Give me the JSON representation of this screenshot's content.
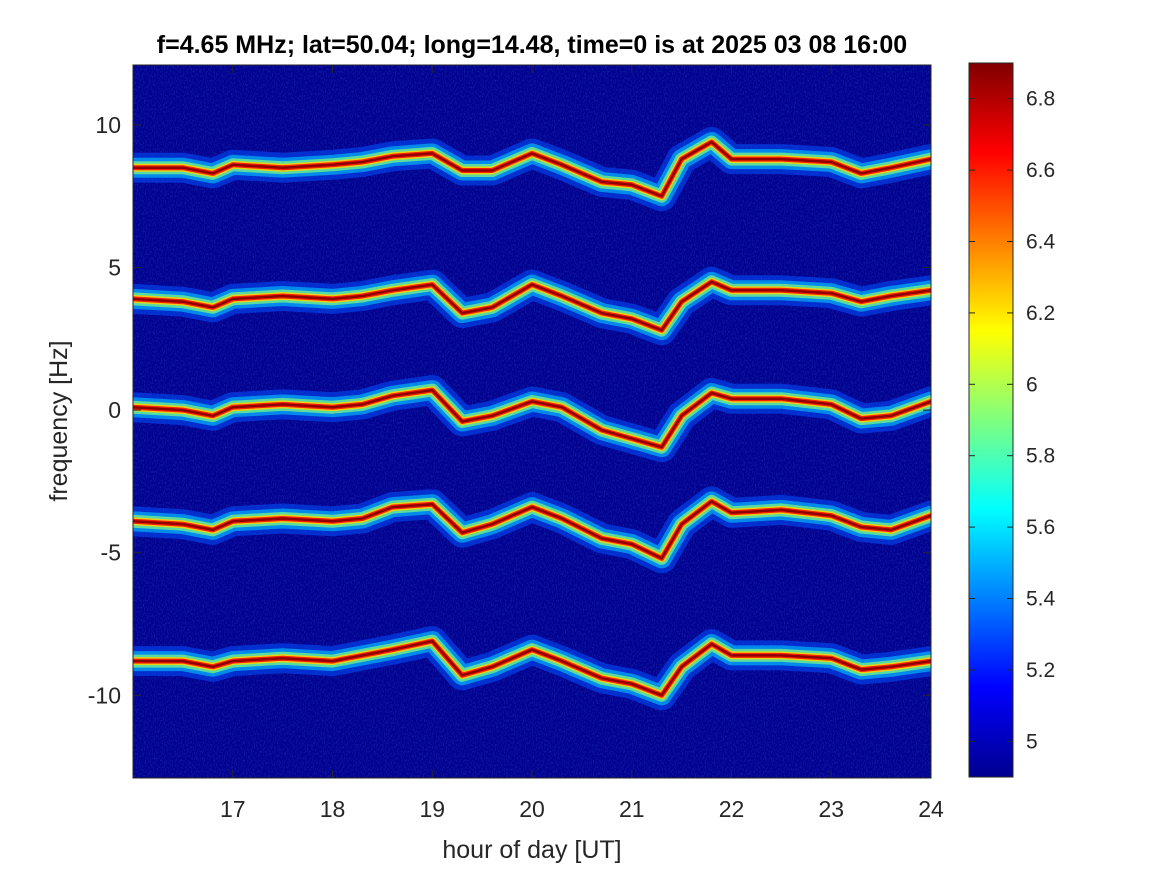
{
  "chart_data": {
    "type": "heatmap",
    "title": "f=4.65 MHz;  lat=50.04; long=14.48, time=0 is at 2025 03 08 16:00",
    "xlabel": "hour of day [UT]",
    "ylabel": "frequency [Hz]",
    "xlim": [
      16.0,
      24.0
    ],
    "ylim": [
      -12.9,
      12.1
    ],
    "xticks": [
      17,
      18,
      19,
      20,
      21,
      22,
      23,
      24
    ],
    "xtick_labels": [
      "17",
      "18",
      "19",
      "20",
      "21",
      "22",
      "23",
      "24"
    ],
    "yticks": [
      10,
      5,
      0,
      -5,
      -10
    ],
    "ytick_labels": [
      "10",
      "5",
      "0",
      "-5",
      "-10"
    ],
    "colormap": "jet",
    "background_color": "#00008f",
    "colorbar": {
      "clim": [
        4.9,
        6.9
      ],
      "ticks": [
        5.0,
        5.2,
        5.4,
        5.6,
        5.8,
        6.0,
        6.2,
        6.4,
        6.6,
        6.8
      ],
      "tick_labels": [
        "5",
        "5.2",
        "5.4",
        "5.6",
        "5.8",
        "6",
        "6.2",
        "6.4",
        "6.6",
        "6.8"
      ]
    },
    "grid": false,
    "series": [
      {
        "x": [
          16.0,
          16.5,
          16.8,
          17.0,
          17.5,
          18.0,
          18.3,
          18.6,
          19.0,
          19.3,
          19.6,
          20.0,
          20.3,
          20.7,
          21.0,
          21.3,
          21.5,
          21.8,
          22.0,
          22.5,
          23.0,
          23.3,
          23.6,
          24.0
        ],
        "y": [
          8.5,
          8.5,
          8.3,
          8.6,
          8.5,
          8.6,
          8.7,
          8.9,
          9.0,
          8.4,
          8.4,
          9.0,
          8.6,
          8.0,
          7.9,
          7.5,
          8.8,
          9.4,
          8.8,
          8.8,
          8.7,
          8.3,
          8.5,
          8.8
        ]
      },
      {
        "x": [
          16.0,
          16.5,
          16.8,
          17.0,
          17.5,
          18.0,
          18.3,
          18.6,
          19.0,
          19.3,
          19.6,
          20.0,
          20.3,
          20.7,
          21.0,
          21.3,
          21.5,
          21.8,
          22.0,
          22.5,
          23.0,
          23.3,
          23.6,
          24.0
        ],
        "y": [
          3.9,
          3.8,
          3.6,
          3.9,
          4.0,
          3.9,
          4.0,
          4.2,
          4.4,
          3.4,
          3.6,
          4.4,
          4.0,
          3.4,
          3.2,
          2.8,
          3.8,
          4.5,
          4.2,
          4.2,
          4.1,
          3.8,
          4.0,
          4.2
        ]
      },
      {
        "x": [
          16.0,
          16.5,
          16.8,
          17.0,
          17.5,
          18.0,
          18.3,
          18.6,
          19.0,
          19.3,
          19.6,
          20.0,
          20.3,
          20.7,
          21.0,
          21.3,
          21.5,
          21.8,
          22.0,
          22.5,
          23.0,
          23.3,
          23.6,
          24.0
        ],
        "y": [
          0.1,
          0.0,
          -0.2,
          0.1,
          0.2,
          0.1,
          0.2,
          0.5,
          0.7,
          -0.4,
          -0.2,
          0.3,
          0.1,
          -0.7,
          -1.0,
          -1.3,
          -0.2,
          0.6,
          0.4,
          0.4,
          0.2,
          -0.3,
          -0.2,
          0.3
        ]
      },
      {
        "x": [
          16.0,
          16.5,
          16.8,
          17.0,
          17.5,
          18.0,
          18.3,
          18.6,
          19.0,
          19.3,
          19.6,
          20.0,
          20.3,
          20.7,
          21.0,
          21.3,
          21.5,
          21.8,
          22.0,
          22.5,
          23.0,
          23.3,
          23.6,
          24.0
        ],
        "y": [
          -3.9,
          -4.0,
          -4.2,
          -3.9,
          -3.8,
          -3.9,
          -3.8,
          -3.4,
          -3.3,
          -4.3,
          -4.0,
          -3.4,
          -3.8,
          -4.5,
          -4.7,
          -5.2,
          -4.0,
          -3.2,
          -3.6,
          -3.5,
          -3.7,
          -4.1,
          -4.2,
          -3.7
        ]
      },
      {
        "x": [
          16.0,
          16.5,
          16.8,
          17.0,
          17.5,
          18.0,
          18.3,
          18.6,
          19.0,
          19.3,
          19.6,
          20.0,
          20.3,
          20.7,
          21.0,
          21.3,
          21.5,
          21.8,
          22.0,
          22.5,
          23.0,
          23.3,
          23.6,
          24.0
        ],
        "y": [
          -8.8,
          -8.8,
          -9.0,
          -8.8,
          -8.7,
          -8.8,
          -8.6,
          -8.4,
          -8.1,
          -9.3,
          -9.0,
          -8.4,
          -8.8,
          -9.4,
          -9.6,
          -10.0,
          -9.0,
          -8.2,
          -8.6,
          -8.6,
          -8.7,
          -9.1,
          -9.0,
          -8.8
        ]
      }
    ]
  }
}
